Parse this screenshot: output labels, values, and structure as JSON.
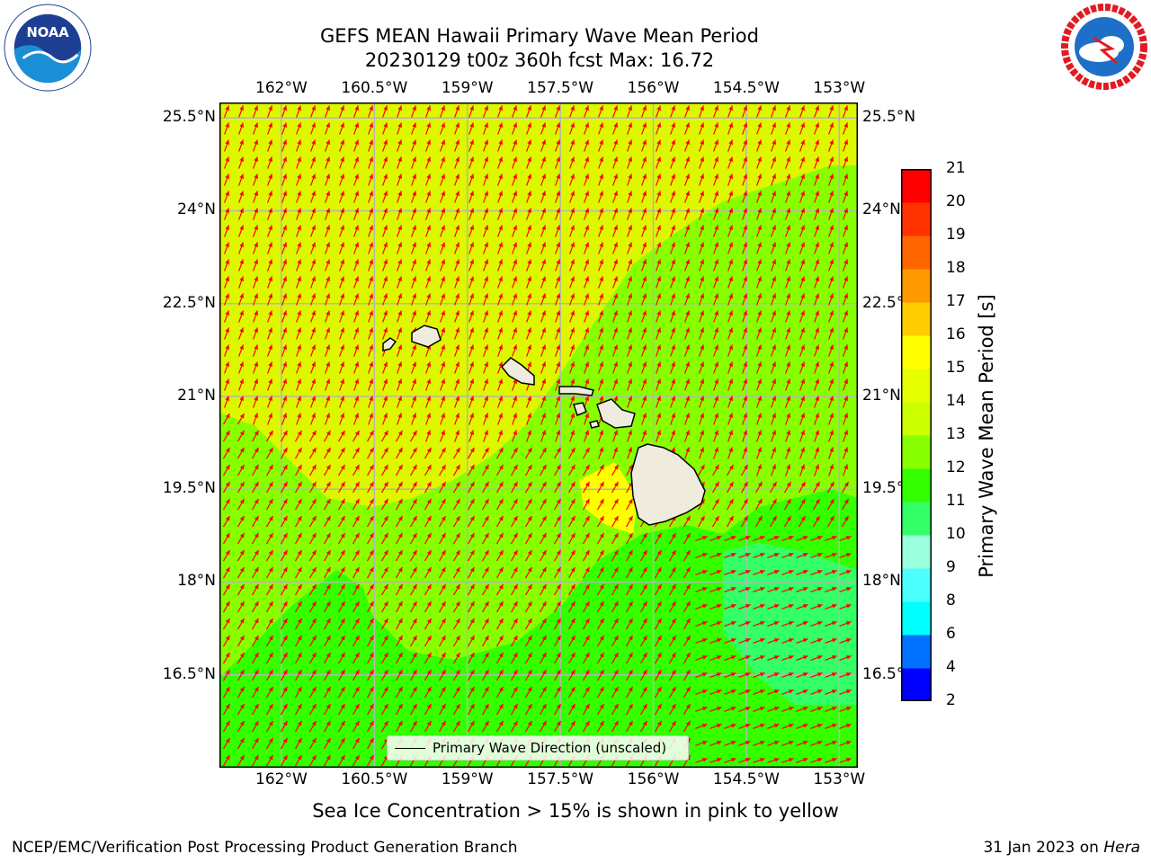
{
  "title": {
    "line1": "GEFS MEAN Hawaii Primary Wave Mean Period",
    "line2": "20230129 t00z 360h fcst   Max: 16.72"
  },
  "logos": {
    "left": {
      "name": "noaa-logo",
      "text": "NOAA",
      "ring_text": "NATIONAL OCEANIC AND ATMOSPHERIC ADMINISTRATION · U.S. DEPARTMENT OF COMMERCE"
    },
    "right": {
      "name": "nws-logo",
      "ring_text": "NATIONAL WEATHER SERVICE"
    }
  },
  "axes": {
    "lon_ticks": [
      "162°W",
      "160.5°W",
      "159°W",
      "157.5°W",
      "156°W",
      "154.5°W",
      "153°W"
    ],
    "lat_ticks": [
      "25.5°N",
      "24°N",
      "22.5°N",
      "21°N",
      "19.5°N",
      "18°N",
      "16.5°N"
    ],
    "lon_range": [
      -163,
      -152.7
    ],
    "lat_range": [
      15,
      25.75
    ]
  },
  "map": {
    "field": "Primary Wave Mean Period",
    "arrow_color": "#ff0000",
    "land_color": "#efebdd",
    "grid_color": "#b5b5b5",
    "legend_label": "Primary Wave Direction (unscaled)"
  },
  "colorbar": {
    "title": "Primary Wave Mean Period [s]",
    "levels": [
      "2",
      "4",
      "6",
      "8",
      "9",
      "10",
      "11",
      "12",
      "13",
      "14",
      "15",
      "16",
      "17",
      "18",
      "19",
      "20",
      "21"
    ],
    "colors": [
      "#0000ff",
      "#0072ff",
      "#00ffff",
      "#4dffff",
      "#99ffdd",
      "#33ff66",
      "#33ff00",
      "#88ff00",
      "#ccff00",
      "#e6ff00",
      "#ffff00",
      "#ffcc00",
      "#ff9900",
      "#ff6600",
      "#ff3300",
      "#ff0000"
    ]
  },
  "caption": "Sea Ice Concentration > 15% is shown in pink to yellow",
  "footer": {
    "left": "NCEP/EMC/Verification Post Processing Product Generation Branch",
    "right_prefix": "31 Jan 2023 on ",
    "right_italic": "Hera"
  }
}
